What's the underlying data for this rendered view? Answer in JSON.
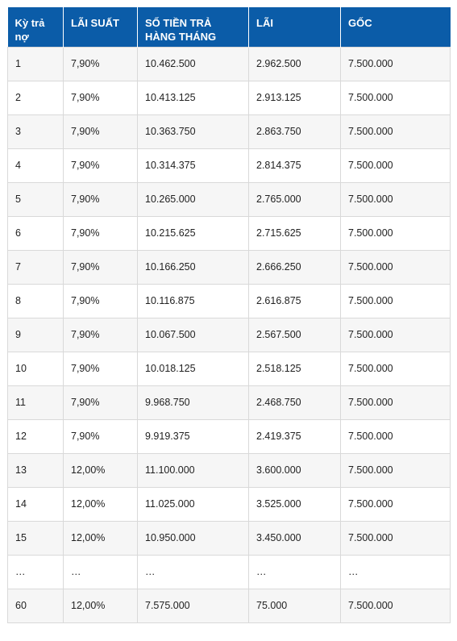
{
  "table": {
    "headers": [
      "Kỳ trả nợ",
      "LÃI SUẤT",
      "SỐ TIỀN TRẢ HÀNG THÁNG",
      "LÃI",
      "GỐC"
    ],
    "rows": [
      [
        "1",
        "7,90%",
        "10.462.500",
        "2.962.500",
        "7.500.000"
      ],
      [
        "2",
        "7,90%",
        "10.413.125",
        "2.913.125",
        "7.500.000"
      ],
      [
        "3",
        "7,90%",
        "10.363.750",
        "2.863.750",
        "7.500.000"
      ],
      [
        "4",
        "7,90%",
        "10.314.375",
        "2.814.375",
        "7.500.000"
      ],
      [
        "5",
        "7,90%",
        "10.265.000",
        "2.765.000",
        "7.500.000"
      ],
      [
        "6",
        "7,90%",
        "10.215.625",
        "2.715.625",
        "7.500.000"
      ],
      [
        "7",
        "7,90%",
        "10.166.250",
        "2.666.250",
        "7.500.000"
      ],
      [
        "8",
        "7,90%",
        "10.116.875",
        "2.616.875",
        "7.500.000"
      ],
      [
        "9",
        "7,90%",
        "10.067.500",
        "2.567.500",
        "7.500.000"
      ],
      [
        "10",
        "7,90%",
        "10.018.125",
        "2.518.125",
        "7.500.000"
      ],
      [
        "11",
        "7,90%",
        "9.968.750",
        "2.468.750",
        "7.500.000"
      ],
      [
        "12",
        "7,90%",
        "9.919.375",
        "2.419.375",
        "7.500.000"
      ],
      [
        "13",
        "12,00%",
        "11.100.000",
        "3.600.000",
        "7.500.000"
      ],
      [
        "14",
        "12,00%",
        "11.025.000",
        "3.525.000",
        "7.500.000"
      ],
      [
        "15",
        "12,00%",
        "10.950.000",
        "3.450.000",
        "7.500.000"
      ],
      [
        "…",
        "…",
        "…",
        "…",
        "…"
      ],
      [
        "60",
        "12,00%",
        "7.575.000",
        "75.000",
        "7.500.000"
      ]
    ]
  },
  "colors": {
    "header_bg": "#0b5ca8",
    "header_text": "#ffffff",
    "row_alt_bg": "#f6f6f6",
    "border": "#d9d9d9"
  }
}
